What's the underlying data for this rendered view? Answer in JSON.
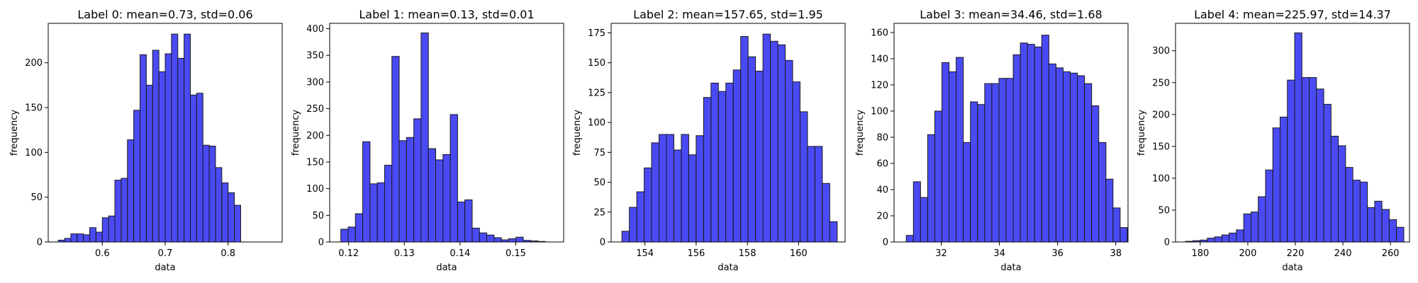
{
  "chart_data": [
    {
      "type": "histogram",
      "title": "Label 0: mean=0.73, std=0.06",
      "xlabel": "data",
      "ylabel": "frequency",
      "bar_color": "#4a4af4",
      "edge_color": "#1a1a1a",
      "xlim": [
        0.514,
        0.886
      ],
      "ylim": [
        0,
        244
      ],
      "xticks": [
        0.6,
        0.7,
        0.8
      ],
      "xtick_labels": [
        "0.6",
        "0.7",
        "0.8"
      ],
      "yticks": [
        0,
        50,
        100,
        150,
        200
      ],
      "ytick_labels": [
        "0",
        "50",
        "100",
        "150",
        "200"
      ],
      "bin_start": 0.53,
      "bin_width": 0.01,
      "counts": [
        2,
        4,
        9,
        9,
        8,
        16,
        11,
        27,
        29,
        69,
        71,
        114,
        147,
        209,
        175,
        214,
        190,
        210,
        232,
        205,
        232,
        164,
        166,
        108,
        107,
        83,
        66,
        55,
        41
      ]
    },
    {
      "type": "histogram",
      "title": "Label 1: mean=0.13, std=0.01",
      "xlabel": "data",
      "ylabel": "frequency",
      "bar_color": "#4a4af4",
      "edge_color": "#1a1a1a",
      "xlim": [
        0.1166,
        0.1586
      ],
      "ylim": [
        0,
        410
      ],
      "xticks": [
        0.12,
        0.13,
        0.14,
        0.15
      ],
      "xtick_labels": [
        "0.12",
        "0.13",
        "0.14",
        "0.15"
      ],
      "yticks": [
        0,
        50,
        100,
        150,
        200,
        250,
        300,
        350,
        400
      ],
      "ytick_labels": [
        "0",
        "50",
        "100",
        "150",
        "200",
        "250",
        "300",
        "350",
        "400"
      ],
      "bin_start": 0.1186,
      "bin_width": 0.00131,
      "counts": [
        24,
        28,
        53,
        188,
        109,
        111,
        144,
        348,
        190,
        196,
        231,
        392,
        175,
        154,
        164,
        239,
        75,
        79,
        26,
        17,
        13,
        8,
        4,
        6,
        9,
        3,
        2,
        1
      ]
    },
    {
      "type": "histogram",
      "title": "Label 2: mean=157.65, std=1.95",
      "xlabel": "data",
      "ylabel": "frequency",
      "bar_color": "#4a4af4",
      "edge_color": "#1a1a1a",
      "xlim": [
        152.68,
        161.82
      ],
      "ylim": [
        0,
        183
      ],
      "xticks": [
        154,
        156,
        158,
        160
      ],
      "xtick_labels": [
        "154",
        "156",
        "158",
        "160"
      ],
      "yticks": [
        0,
        25,
        50,
        75,
        100,
        125,
        150,
        175
      ],
      "ytick_labels": [
        "0",
        "25",
        "50",
        "75",
        "100",
        "125",
        "150",
        "175"
      ],
      "bin_start": 153.1,
      "bin_width": 0.29,
      "counts": [
        9,
        29,
        42,
        62,
        83,
        90,
        90,
        77,
        90,
        73,
        89,
        121,
        133,
        126,
        133,
        144,
        172,
        155,
        143,
        174,
        168,
        165,
        152,
        134,
        109,
        80,
        80,
        49,
        17
      ]
    },
    {
      "type": "histogram",
      "title": "Label 3: mean=34.46, std=1.68",
      "xlabel": "data",
      "ylabel": "frequency",
      "bar_color": "#4a4af4",
      "edge_color": "#1a1a1a",
      "xlim": [
        30.38,
        38.42
      ],
      "ylim": [
        0,
        167
      ],
      "xticks": [
        32,
        34,
        36,
        38
      ],
      "xtick_labels": [
        "32",
        "34",
        "36",
        "38"
      ],
      "yticks": [
        0,
        20,
        40,
        60,
        80,
        100,
        120,
        140,
        160
      ],
      "ytick_labels": [
        "0",
        "20",
        "40",
        "60",
        "80",
        "100",
        "120",
        "140",
        "160"
      ],
      "bin_start": 30.8,
      "bin_width": 0.245,
      "counts": [
        5,
        46,
        34,
        82,
        100,
        137,
        130,
        141,
        76,
        107,
        105,
        121,
        121,
        125,
        125,
        143,
        152,
        151,
        149,
        158,
        136,
        133,
        130,
        129,
        127,
        121,
        104,
        76,
        48,
        26,
        11
      ]
    },
    {
      "type": "histogram",
      "title": "Label 4: mean=225.97, std=14.37",
      "xlabel": "data",
      "ylabel": "frequency",
      "bar_color": "#4a4af4",
      "edge_color": "#1a1a1a",
      "xlim": [
        169.6,
        268
      ],
      "ylim": [
        0,
        343
      ],
      "xticks": [
        180,
        200,
        220,
        240,
        260
      ],
      "xtick_labels": [
        "180",
        "200",
        "220",
        "240",
        "260"
      ],
      "yticks": [
        0,
        50,
        100,
        150,
        200,
        250,
        300
      ],
      "ytick_labels": [
        "0",
        "50",
        "100",
        "150",
        "200",
        "250",
        "300"
      ],
      "bin_start": 173.8,
      "bin_width": 3.06,
      "counts": [
        1,
        2,
        3,
        6,
        8,
        11,
        14,
        19,
        44,
        47,
        71,
        113,
        179,
        196,
        254,
        328,
        258,
        258,
        240,
        216,
        166,
        151,
        117,
        97,
        94,
        54,
        64,
        51,
        35,
        23
      ]
    }
  ]
}
